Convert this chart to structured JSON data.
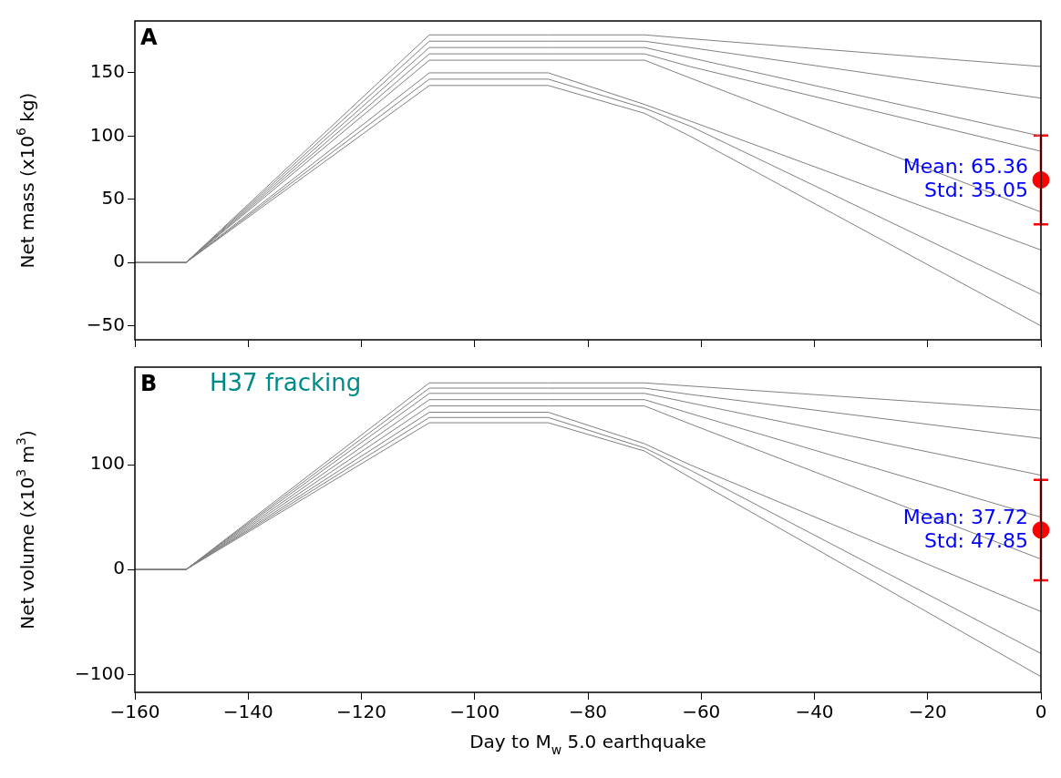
{
  "chart_data": [
    {
      "type": "line",
      "title": "A",
      "ylabel": "Net mass (x10$^{6}$ kg)",
      "x": [
        -160,
        -151,
        -108,
        -87,
        -70,
        -62,
        0
      ],
      "xlim": [
        -160,
        0
      ],
      "xticks": [
        -160,
        -140,
        -120,
        -100,
        -80,
        -60,
        -40,
        -20,
        0
      ],
      "ylim": [
        -61,
        191
      ],
      "yticks": [
        -50,
        0,
        50,
        100,
        150
      ],
      "tick_labels": "y",
      "legend": false,
      "marker": "none",
      "line_style": "solid",
      "annotations": [
        "Mean: 65.36",
        "Std: 35.05"
      ],
      "series": [
        {
          "type": "line",
          "color": "#808080",
          "values": [
            0,
            0,
            180,
            180,
            180,
            177,
            155
          ]
        },
        {
          "type": "line",
          "color": "#808080",
          "values": [
            0,
            0,
            175,
            175,
            175,
            170,
            130
          ]
        },
        {
          "type": "line",
          "color": "#808080",
          "values": [
            0,
            0,
            170,
            170,
            170,
            162,
            100
          ]
        },
        {
          "type": "line",
          "color": "#808080",
          "values": [
            0,
            0,
            165,
            165,
            165,
            155,
            88
          ]
        },
        {
          "type": "line",
          "color": "#808080",
          "values": [
            0,
            0,
            160,
            160,
            160,
            146,
            40
          ]
        },
        {
          "type": "line",
          "color": "#808080",
          "values": [
            0,
            0,
            150,
            150,
            125,
            112,
            10
          ]
        },
        {
          "type": "line",
          "color": "#808080",
          "values": [
            0,
            0,
            145,
            145,
            122,
            108,
            -25
          ]
        },
        {
          "type": "line",
          "color": "#808080",
          "values": [
            0,
            0,
            140,
            140,
            118,
            100,
            -50
          ]
        },
        {
          "type": "scatter",
          "color": "#ff0000",
          "marker": "circle",
          "x": [
            0
          ],
          "values": [
            65.36
          ],
          "errors": [
            35.05
          ]
        }
      ]
    },
    {
      "type": "line",
      "title": "B",
      "ylabel": "Net volume (x10$^{3}$ m$^{3}$)",
      "xlabel": "Day to M$_{w}$ 5.0 earthquake",
      "x": [
        -160,
        -151,
        -108,
        -87,
        -70,
        -62,
        0
      ],
      "xlim": [
        -160,
        0
      ],
      "xticks": [
        -160,
        -140,
        -120,
        -100,
        -80,
        -60,
        -40,
        -20,
        0
      ],
      "ylim": [
        -117,
        193
      ],
      "yticks": [
        -100,
        0,
        100
      ],
      "legend": false,
      "marker": "none",
      "line_style": "solid",
      "annotations": [
        "H37 fracking",
        "Mean: 37.72",
        "Std: 47.85"
      ],
      "series": [
        {
          "type": "line",
          "color": "#808080",
          "values": [
            0,
            0,
            178,
            178,
            178,
            175,
            152
          ]
        },
        {
          "type": "line",
          "color": "#808080",
          "values": [
            0,
            0,
            173,
            173,
            173,
            167,
            125
          ]
        },
        {
          "type": "line",
          "color": "#808080",
          "values": [
            0,
            0,
            168,
            168,
            168,
            159,
            90
          ]
        },
        {
          "type": "line",
          "color": "#808080",
          "values": [
            0,
            0,
            162,
            162,
            162,
            149,
            50
          ]
        },
        {
          "type": "line",
          "color": "#808080",
          "values": [
            0,
            0,
            156,
            156,
            156,
            139,
            10
          ]
        },
        {
          "type": "line",
          "color": "#808080",
          "values": [
            0,
            0,
            150,
            150,
            120,
            100,
            -40
          ]
        },
        {
          "type": "line",
          "color": "#808080",
          "values": [
            0,
            0,
            145,
            145,
            116,
            95,
            -80
          ]
        },
        {
          "type": "line",
          "color": "#808080",
          "values": [
            0,
            0,
            140,
            140,
            113,
            88,
            -102
          ]
        },
        {
          "type": "scatter",
          "color": "#ff0000",
          "marker": "circle",
          "x": [
            0
          ],
          "values": [
            37.72
          ],
          "errors": [
            47.85
          ]
        }
      ]
    }
  ]
}
